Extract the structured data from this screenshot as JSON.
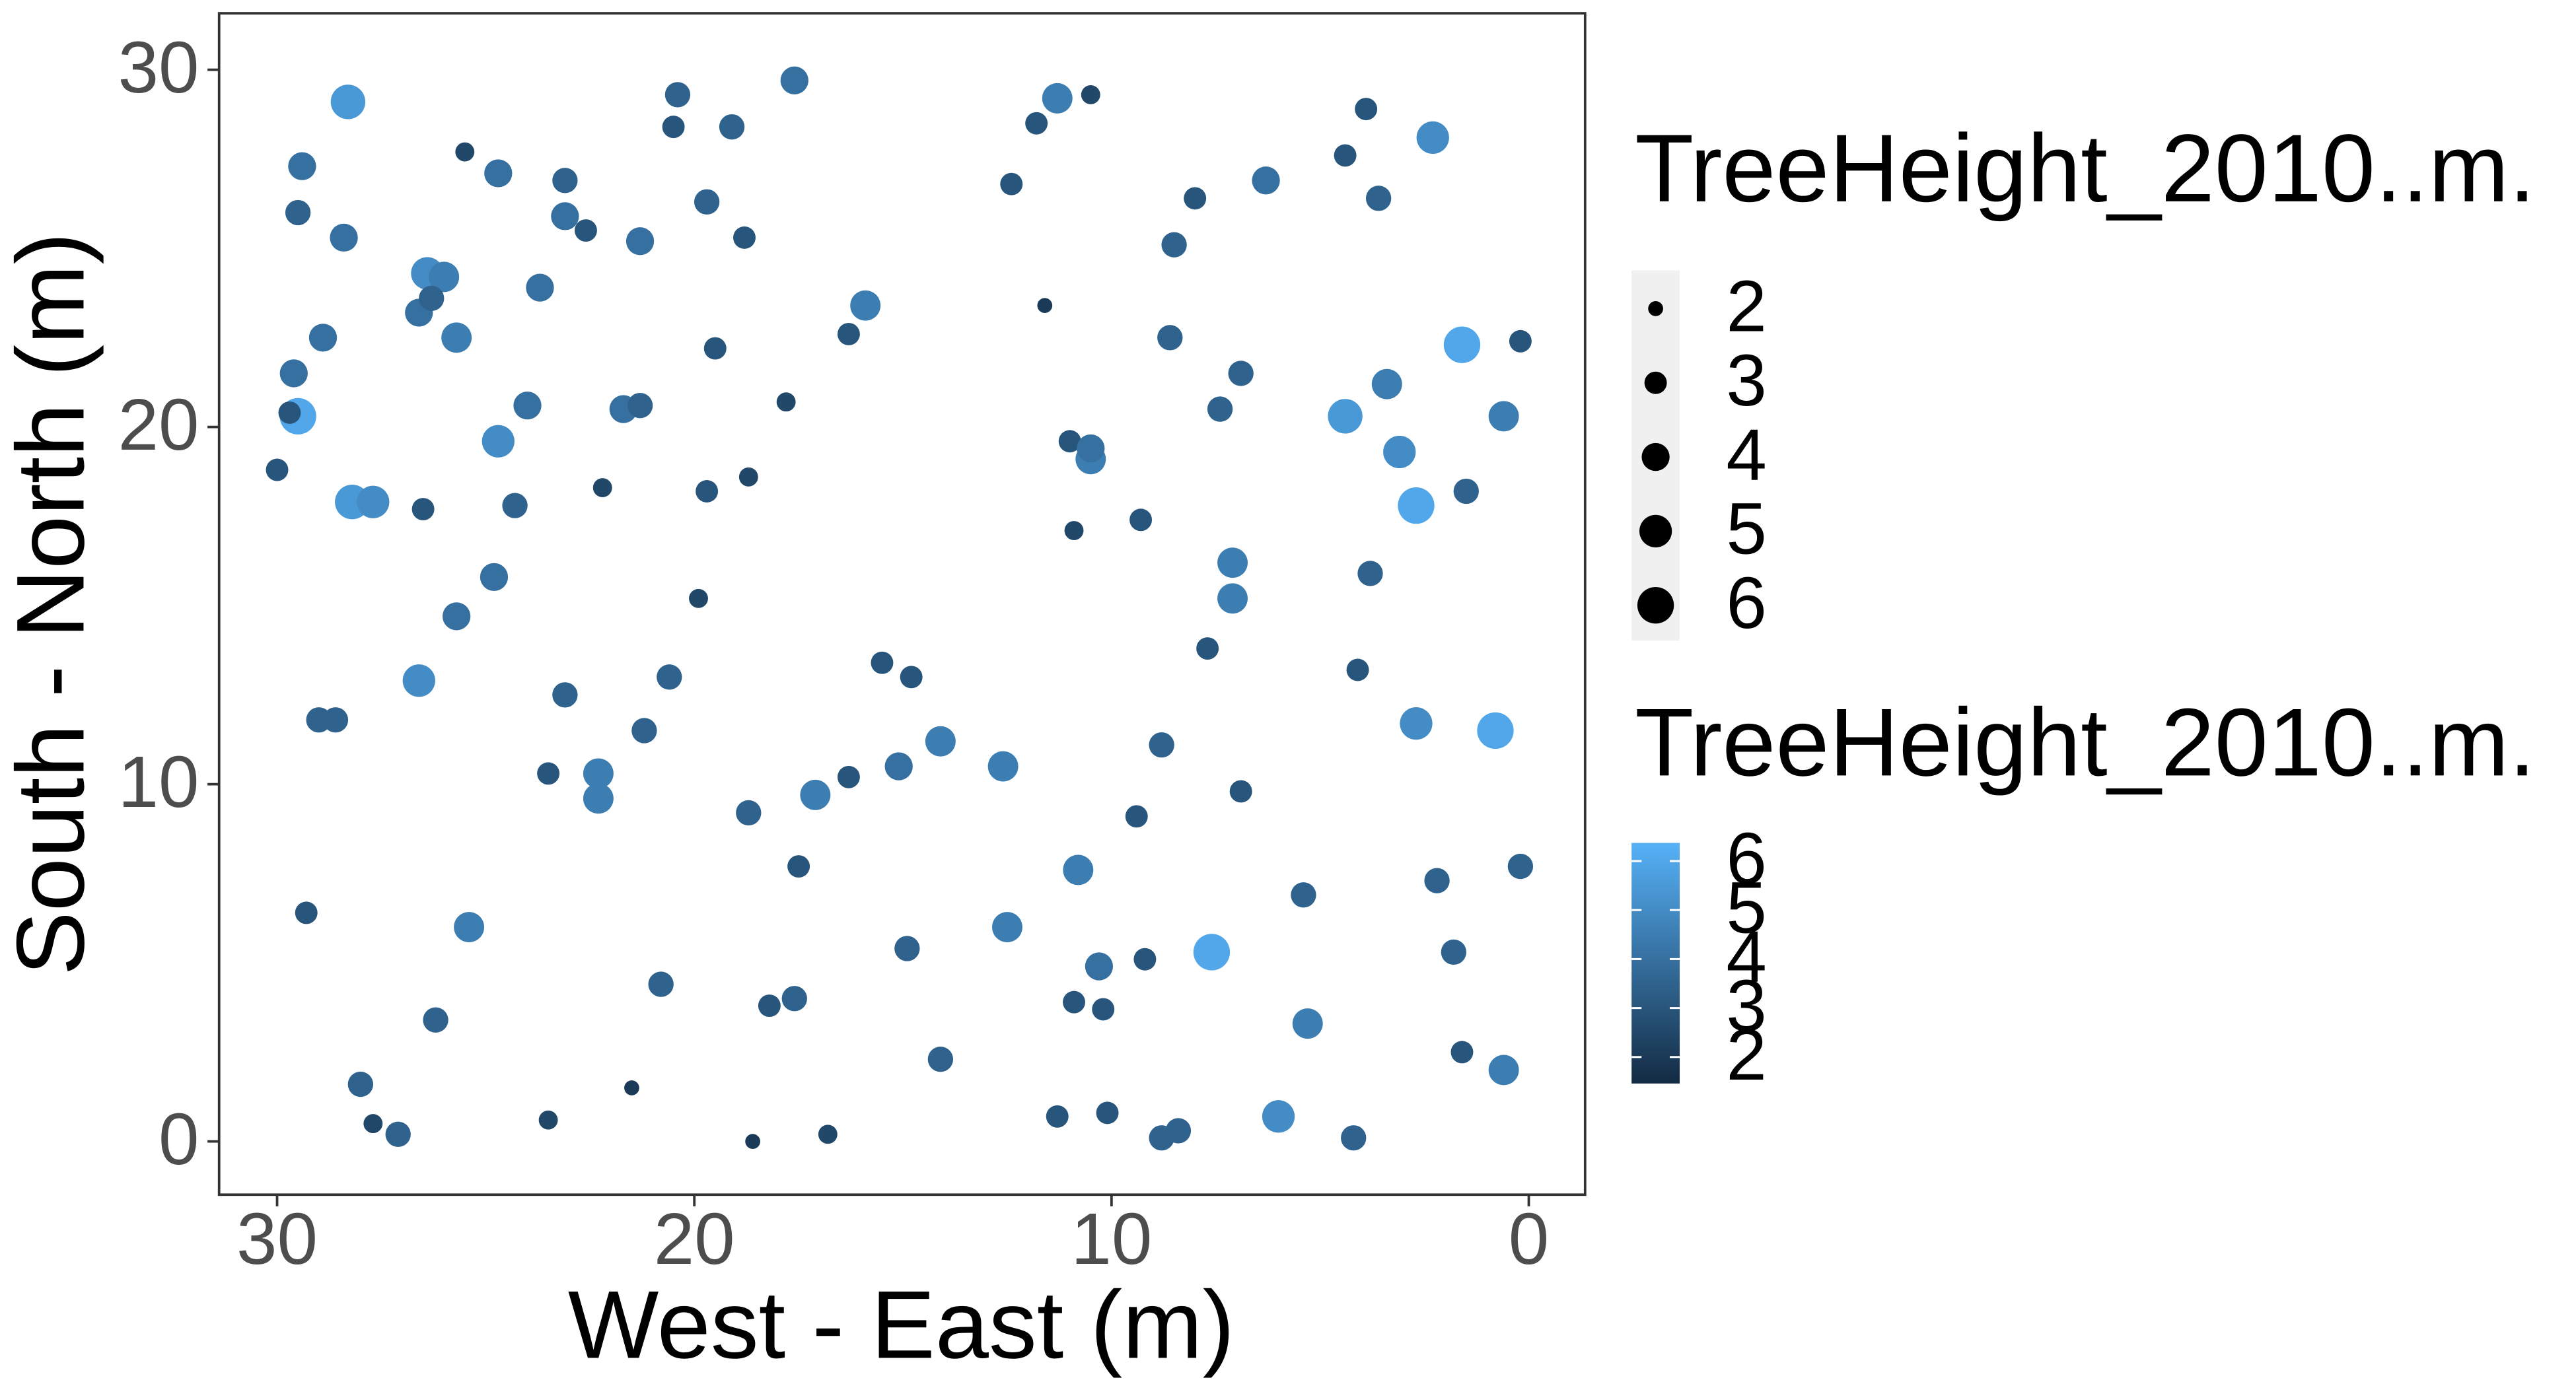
{
  "chart_data": {
    "type": "scatter",
    "x_label": "West - East (m)",
    "y_label": "South - North (m)",
    "xlim": [
      31.39,
      -1.35
    ],
    "ylim": [
      -1.49,
      31.58
    ],
    "xticks": [
      30,
      20,
      10,
      0
    ],
    "yticks": [
      0,
      10,
      20,
      30
    ],
    "x": [
      28.3,
      29.4,
      29.5,
      28.4,
      28.9,
      29.6,
      29.5,
      30.0,
      28.2,
      27.7,
      26.4,
      26.0,
      26.6,
      25.7,
      26.3,
      24.7,
      25.5,
      23.1,
      23.1,
      23.7,
      24.0,
      24.7,
      24.3,
      26.5,
      24.8,
      25.7,
      26.6,
      29.0,
      28.6,
      29.3,
      25.4,
      26.2,
      28.0,
      27.1,
      23.5,
      20.8,
      22.3,
      22.3,
      23.5,
      23.1,
      21.2,
      20.6,
      21.7,
      21.3,
      22.2,
      21.3,
      20.4,
      20.5,
      19.1,
      17.6,
      19.7,
      18.8,
      19.5,
      17.8,
      19.7,
      18.7,
      19.9,
      18.7,
      17.1,
      17.5,
      15.9,
      16.3,
      14.1,
      15.1,
      16.3,
      12.6,
      14.8,
      15.5,
      11.6,
      11.3,
      11.8,
      10.5,
      12.4,
      11.0,
      10.5,
      10.5,
      9.3,
      10.9,
      10.8,
      12.5,
      10.3,
      10.2,
      10.9,
      11.3,
      10.1,
      9.2,
      8.8,
      8.4,
      7.6,
      6.0,
      5.3,
      4.2,
      7.1,
      7.1,
      6.9,
      7.7,
      9.4,
      8.8,
      8.5,
      8.6,
      7.4,
      6.9,
      6.3,
      4.4,
      3.4,
      3.1,
      2.7,
      1.6,
      2.3,
      0.6,
      0.8,
      2.7,
      1.8,
      0.6,
      0.2,
      0.2,
      1.5,
      3.8,
      4.1,
      3.6,
      3.9,
      4.4,
      5.4,
      1.6,
      2.2,
      8.0,
      22.6,
      14.1,
      17.6,
      18.2,
      14.9,
      16.8,
      18.6,
      21.5,
      27.7,
      29.7
    ],
    "y": [
      29.1,
      27.3,
      26.0,
      25.3,
      22.5,
      21.5,
      20.3,
      18.8,
      17.9,
      17.9,
      24.3,
      24.2,
      23.2,
      22.5,
      23.6,
      27.1,
      27.7,
      26.9,
      25.9,
      23.9,
      20.6,
      19.6,
      17.8,
      17.7,
      15.8,
      14.7,
      12.9,
      11.8,
      11.8,
      6.4,
      6.0,
      3.4,
      1.6,
      0.2,
      0.6,
      4.4,
      10.3,
      9.6,
      10.3,
      12.5,
      11.5,
      13.0,
      20.5,
      20.6,
      18.3,
      25.2,
      29.3,
      28.4,
      28.4,
      29.7,
      26.3,
      25.3,
      22.2,
      20.7,
      18.2,
      18.6,
      15.2,
      9.2,
      9.7,
      7.7,
      23.4,
      22.6,
      11.2,
      10.5,
      10.2,
      10.5,
      13.0,
      13.4,
      23.4,
      29.2,
      28.5,
      29.3,
      26.8,
      19.6,
      19.1,
      19.4,
      17.4,
      17.1,
      7.6,
      6.0,
      4.9,
      3.7,
      3.9,
      0.7,
      0.8,
      5.1,
      0.1,
      0.3,
      5.3,
      0.7,
      3.3,
      0.1,
      16.2,
      15.2,
      9.8,
      13.8,
      9.1,
      11.1,
      25.1,
      22.5,
      20.5,
      21.5,
      26.9,
      20.3,
      21.2,
      19.3,
      17.8,
      22.3,
      28.1,
      20.3,
      11.5,
      11.7,
      5.3,
      2.0,
      7.7,
      22.4,
      18.2,
      15.9,
      13.2,
      26.4,
      28.9,
      27.6,
      6.9,
      2.5,
      7.3,
      26.4,
      25.5,
      2.3,
      4.0,
      3.8,
      5.4,
      0.2,
      0,
      1.5,
      0.5,
      20.4
    ],
    "values": [
      5.5,
      4,
      3.5,
      4,
      4,
      4,
      6,
      3,
      5.5,
      5,
      5,
      4.5,
      4,
      4.5,
      3.5,
      4,
      2.5,
      3.5,
      4,
      4,
      4,
      5,
      3.5,
      3,
      4,
      4,
      5,
      3.5,
      3.5,
      3,
      4.5,
      3.5,
      3.5,
      3.5,
      2.5,
      3.5,
      4.5,
      4.5,
      3,
      3.5,
      3.5,
      3.5,
      4,
      3.5,
      2.5,
      4,
      3.5,
      3,
      3.5,
      4,
      3.5,
      3,
      3,
      2.5,
      3,
      2.5,
      2.5,
      3.5,
      4.5,
      3,
      4.5,
      3,
      4.5,
      4,
      3,
      4.5,
      3,
      3,
      2,
      4.5,
      3,
      2.5,
      3,
      3,
      4.5,
      4,
      3,
      2.5,
      4.5,
      4.5,
      4,
      3,
      3,
      3,
      3,
      3,
      3.5,
      3.5,
      6,
      5,
      4.5,
      3.5,
      4.5,
      4.5,
      3,
      3,
      3,
      3.5,
      3.5,
      3.5,
      3.5,
      3.5,
      4,
      5.5,
      4.5,
      5,
      6,
      6,
      5,
      4.5,
      6,
      5,
      3.5,
      4.5,
      3.5,
      3,
      3.5,
      3.5,
      3,
      3.5,
      3,
      3,
      3.5,
      3,
      3.5,
      3,
      3,
      3.5,
      3.5,
      3,
      3.5,
      2.5,
      2,
      2,
      2.5,
      3
    ],
    "size_legend_title": "TreeHeight_2010..m.",
    "size_breaks": [
      2,
      3,
      4,
      5,
      6
    ],
    "color_legend_title": "TreeHeight_2010..m.",
    "color_breaks": [
      2,
      3,
      4,
      5,
      6
    ],
    "color_low": "#132b43",
    "color_high": "#56b1f7",
    "color_lim": [
      1.46,
      6.37
    ]
  }
}
